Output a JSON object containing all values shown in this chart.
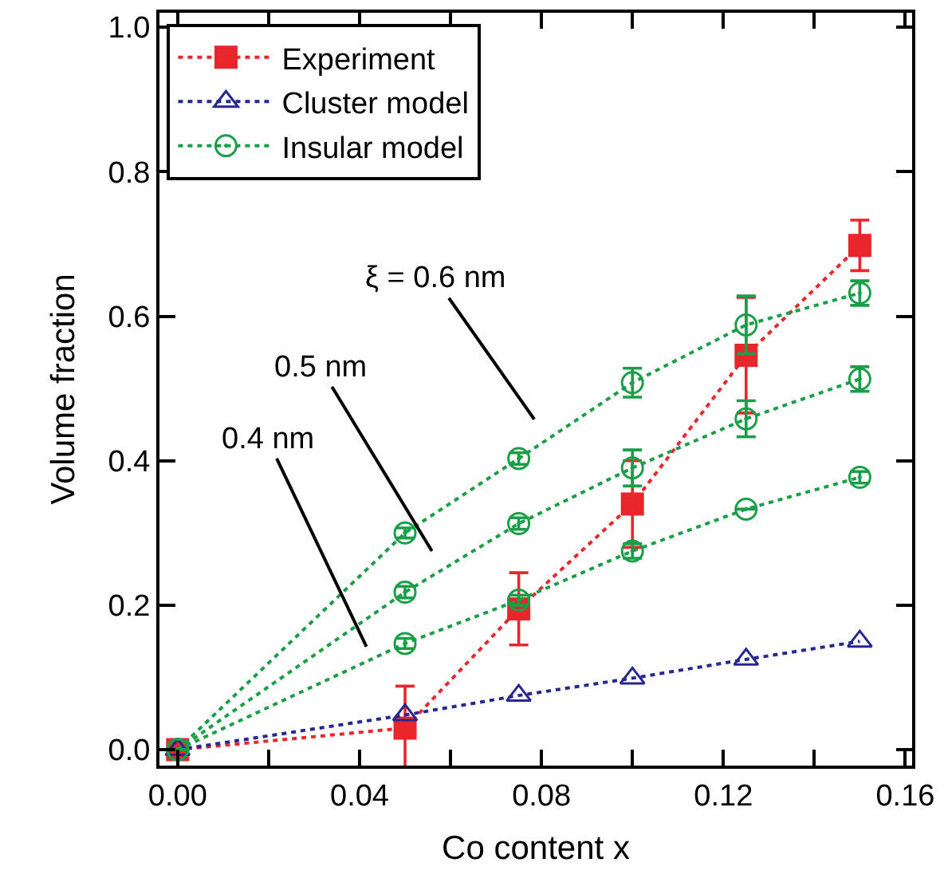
{
  "chart_data": {
    "type": "line",
    "xlabel": "Co content x",
    "ylabel": "Volume fraction",
    "x": [
      0,
      0.05,
      0.075,
      0.1,
      0.125,
      0.15
    ],
    "series": [
      {
        "name": "Experiment",
        "color": "#e8262c",
        "marker": "square",
        "values": [
          0,
          0.03,
          0.195,
          0.34,
          0.546,
          0.698
        ],
        "errors": [
          null,
          0.058,
          0.05,
          0.06,
          0.08,
          0.035
        ]
      },
      {
        "name": "Cluster model",
        "color": "#26278f",
        "marker": "triangle",
        "values": [
          0,
          0.048,
          0.075,
          0.099,
          0.125,
          0.15
        ]
      },
      {
        "name": "Insular model",
        "color": "#1a9e48",
        "marker": "circle",
        "values": [
          0,
          0.147,
          0.207,
          0.275,
          0.333,
          0.377
        ],
        "errors": [
          null,
          0.007,
          0.007,
          0.01,
          null,
          0.008
        ]
      },
      {
        "color": "#1a9e48",
        "marker": "circle",
        "values": [
          0,
          0.218,
          0.313,
          0.39,
          0.458,
          0.513
        ],
        "errors": [
          null,
          0.008,
          0.008,
          0.025,
          0.025,
          0.017
        ]
      },
      {
        "color": "#1a9e48",
        "marker": "circle",
        "values": [
          0,
          0.3,
          0.403,
          0.508,
          0.588,
          0.632
        ],
        "errors": [
          null,
          0.007,
          0.008,
          0.02,
          0.04,
          0.017
        ]
      }
    ],
    "line_style": "dotted",
    "xlim": [
      -0.004,
      0.1615
    ],
    "ylim": [
      -0.022,
      1.02
    ],
    "xticks": [
      {
        "value": 0,
        "label": "0.00"
      },
      {
        "value": 0.02,
        "label": null
      },
      {
        "value": 0.04,
        "label": "0.04"
      },
      {
        "value": 0.06,
        "label": null
      },
      {
        "value": 0.08,
        "label": "0.08"
      },
      {
        "value": 0.1,
        "label": null
      },
      {
        "value": 0.12,
        "label": "0.12"
      },
      {
        "value": 0.14,
        "label": null
      },
      {
        "value": 0.16,
        "label": "0.16"
      }
    ],
    "yticks": [
      {
        "value": 0,
        "label": "0.0"
      },
      {
        "value": 0.2,
        "label": "0.2"
      },
      {
        "value": 0.4,
        "label": "0.4"
      },
      {
        "value": 0.6,
        "label": "0.6"
      },
      {
        "value": 0.8,
        "label": "0.8"
      },
      {
        "value": 1.0,
        "label": "1.0"
      }
    ],
    "annotations": [
      "ξ = 0.6 nm",
      "0.5 nm",
      "0.4 nm"
    ],
    "legend": "top left"
  }
}
